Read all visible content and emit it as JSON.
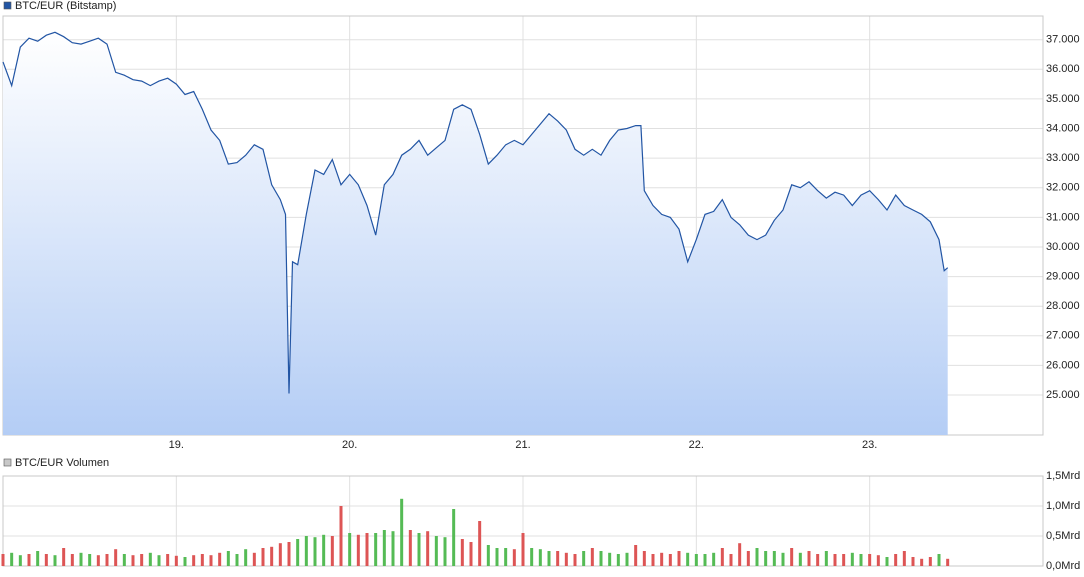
{
  "chart_data": [
    {
      "type": "line",
      "series": [
        {
          "name": "BTC/EUR (Bitstamp)",
          "color": "#2255a4",
          "x": [
            18.0,
            18.05,
            18.1,
            18.15,
            18.2,
            18.25,
            18.3,
            18.35,
            18.4,
            18.45,
            18.5,
            18.55,
            18.6,
            18.65,
            18.7,
            18.75,
            18.8,
            18.85,
            18.9,
            18.95,
            19.0,
            19.05,
            19.1,
            19.15,
            19.2,
            19.25,
            19.3,
            19.35,
            19.4,
            19.45,
            19.5,
            19.55,
            19.6,
            19.63,
            19.65,
            19.67,
            19.7,
            19.75,
            19.8,
            19.85,
            19.9,
            19.95,
            20.0,
            20.05,
            20.1,
            20.15,
            20.2,
            20.25,
            20.3,
            20.35,
            20.4,
            20.45,
            20.5,
            20.55,
            20.6,
            20.65,
            20.7,
            20.75,
            20.8,
            20.85,
            20.9,
            20.95,
            21.0,
            21.05,
            21.1,
            21.15,
            21.2,
            21.25,
            21.3,
            21.35,
            21.4,
            21.45,
            21.5,
            21.55,
            21.6,
            21.65,
            21.68,
            21.7,
            21.75,
            21.8,
            21.85,
            21.9,
            21.95,
            22.0,
            22.05,
            22.1,
            22.15,
            22.2,
            22.25,
            22.3,
            22.35,
            22.4,
            22.45,
            22.5,
            22.55,
            22.6,
            22.65,
            22.7,
            22.75,
            22.8,
            22.85,
            22.9,
            22.95,
            23.0,
            23.05,
            23.1,
            23.15,
            23.2,
            23.25,
            23.3,
            23.35,
            23.4,
            23.43,
            23.45
          ],
          "values": [
            36250,
            35450,
            36750,
            37050,
            36950,
            37150,
            37250,
            37100,
            36900,
            36850,
            36950,
            37050,
            36850,
            35900,
            35800,
            35650,
            35600,
            35450,
            35600,
            35700,
            35500,
            35150,
            35250,
            34650,
            33950,
            33600,
            32800,
            32850,
            33100,
            33450,
            33300,
            32100,
            31600,
            31100,
            25050,
            29500,
            29400,
            31100,
            32600,
            32450,
            32950,
            32100,
            32450,
            32100,
            31400,
            30400,
            32100,
            32450,
            33100,
            33300,
            33600,
            33100,
            33350,
            33600,
            34650,
            34800,
            34650,
            33800,
            32800,
            33100,
            33450,
            33600,
            33450,
            33800,
            34150,
            34500,
            34250,
            33950,
            33300,
            33100,
            33300,
            33100,
            33600,
            33950,
            34000,
            34100,
            34100,
            31900,
            31400,
            31100,
            31000,
            30600,
            29500,
            30250,
            31100,
            31200,
            31600,
            31000,
            30750,
            30400,
            30250,
            30400,
            30900,
            31250,
            32100,
            32000,
            32200,
            31900,
            31650,
            31850,
            31750,
            31400,
            31750,
            31900,
            31600,
            31250,
            31750,
            31400,
            31250,
            31100,
            30850,
            30250,
            29200,
            29300
          ]
        }
      ],
      "xlim": [
        18,
        24
      ],
      "xticks": [
        {
          "value": 19,
          "label": "19."
        },
        {
          "value": 20,
          "label": "20."
        },
        {
          "value": 21,
          "label": "21."
        },
        {
          "value": 22,
          "label": "22."
        },
        {
          "value": 23,
          "label": "23."
        }
      ],
      "ylim": [
        23650,
        37800
      ],
      "yticks": [
        {
          "value": 25000,
          "label": "25.000"
        },
        {
          "value": 26000,
          "label": "26.000"
        },
        {
          "value": 27000,
          "label": "27.000"
        },
        {
          "value": 28000,
          "label": "28.000"
        },
        {
          "value": 29000,
          "label": "29.000"
        },
        {
          "value": 30000,
          "label": "30.000"
        },
        {
          "value": 31000,
          "label": "31.000"
        },
        {
          "value": 32000,
          "label": "32.000"
        },
        {
          "value": 33000,
          "label": "33.000"
        },
        {
          "value": 34000,
          "label": "34.000"
        },
        {
          "value": 35000,
          "label": "35.000"
        },
        {
          "value": 36000,
          "label": "36.000"
        },
        {
          "value": 37000,
          "label": "37.000"
        }
      ],
      "grid": true
    },
    {
      "type": "bar",
      "series": [
        {
          "name": "BTC/EUR Volumen",
          "color": "#c8c8c8",
          "x": [
            18.0,
            18.05,
            18.1,
            18.15,
            18.2,
            18.25,
            18.3,
            18.35,
            18.4,
            18.45,
            18.5,
            18.55,
            18.6,
            18.65,
            18.7,
            18.75,
            18.8,
            18.85,
            18.9,
            18.95,
            19.0,
            19.05,
            19.1,
            19.15,
            19.2,
            19.25,
            19.3,
            19.35,
            19.4,
            19.45,
            19.5,
            19.55,
            19.6,
            19.65,
            19.7,
            19.75,
            19.8,
            19.85,
            19.9,
            19.95,
            20.0,
            20.05,
            20.1,
            20.15,
            20.2,
            20.25,
            20.3,
            20.35,
            20.4,
            20.45,
            20.5,
            20.55,
            20.6,
            20.65,
            20.7,
            20.75,
            20.8,
            20.85,
            20.9,
            20.95,
            21.0,
            21.05,
            21.1,
            21.15,
            21.2,
            21.25,
            21.3,
            21.35,
            21.4,
            21.45,
            21.5,
            21.55,
            21.6,
            21.65,
            21.7,
            21.75,
            21.8,
            21.85,
            21.9,
            21.95,
            22.0,
            22.05,
            22.1,
            22.15,
            22.2,
            22.25,
            22.3,
            22.35,
            22.4,
            22.45,
            22.5,
            22.55,
            22.6,
            22.65,
            22.7,
            22.75,
            22.8,
            22.85,
            22.9,
            22.95,
            23.0,
            23.05,
            23.1,
            23.15,
            23.2,
            23.25,
            23.3,
            23.35,
            23.4,
            23.45
          ],
          "values": [
            0.2,
            0.22,
            0.18,
            0.2,
            0.25,
            0.2,
            0.18,
            0.3,
            0.2,
            0.22,
            0.2,
            0.18,
            0.2,
            0.28,
            0.2,
            0.18,
            0.2,
            0.22,
            0.18,
            0.2,
            0.17,
            0.15,
            0.18,
            0.2,
            0.18,
            0.22,
            0.25,
            0.2,
            0.28,
            0.22,
            0.3,
            0.32,
            0.38,
            0.4,
            0.45,
            0.5,
            0.48,
            0.52,
            0.5,
            1.0,
            0.55,
            0.52,
            0.55,
            0.55,
            0.6,
            0.58,
            1.12,
            0.6,
            0.55,
            0.58,
            0.5,
            0.48,
            0.95,
            0.45,
            0.4,
            0.75,
            0.35,
            0.3,
            0.3,
            0.28,
            0.55,
            0.3,
            0.28,
            0.25,
            0.25,
            0.22,
            0.2,
            0.25,
            0.3,
            0.25,
            0.22,
            0.2,
            0.22,
            0.35,
            0.25,
            0.2,
            0.22,
            0.2,
            0.25,
            0.22,
            0.2,
            0.2,
            0.22,
            0.3,
            0.2,
            0.38,
            0.25,
            0.3,
            0.25,
            0.25,
            0.22,
            0.3,
            0.22,
            0.25,
            0.2,
            0.25,
            0.2,
            0.2,
            0.22,
            0.2,
            0.2,
            0.18,
            0.15,
            0.2,
            0.25,
            0.15,
            0.12,
            0.15,
            0.2,
            0.12
          ],
          "colors": [
            "#d55",
            "#5b5",
            "#5b5",
            "#d55",
            "#5b5",
            "#d55",
            "#5b5",
            "#d55",
            "#d55",
            "#5b5",
            "#5b5",
            "#d55",
            "#d55",
            "#d55",
            "#5b5",
            "#d55",
            "#d55",
            "#5b5",
            "#5b5",
            "#d55",
            "#d55",
            "#5b5",
            "#d55",
            "#d55",
            "#d55",
            "#d55",
            "#5b5",
            "#5b5",
            "#5b5",
            "#d55",
            "#d55",
            "#d55",
            "#d55",
            "#d55",
            "#5b5",
            "#5b5",
            "#5b5",
            "#5b5",
            "#d55",
            "#d55",
            "#5b5",
            "#d55",
            "#d55",
            "#5b5",
            "#5b5",
            "#5b5",
            "#5b5",
            "#d55",
            "#5b5",
            "#d55",
            "#5b5",
            "#5b5",
            "#5b5",
            "#d55",
            "#d55",
            "#d55",
            "#5b5",
            "#5b5",
            "#5b5",
            "#d55",
            "#d55",
            "#5b5",
            "#5b5",
            "#5b5",
            "#d55",
            "#d55",
            "#d55",
            "#5b5",
            "#d55",
            "#5b5",
            "#5b5",
            "#5b5",
            "#5b5",
            "#d55",
            "#d55",
            "#d55",
            "#d55",
            "#d55",
            "#d55",
            "#5b5",
            "#5b5",
            "#5b5",
            "#5b5",
            "#d55",
            "#d55",
            "#d55",
            "#d55",
            "#5b5",
            "#5b5",
            "#5b5",
            "#5b5",
            "#d55",
            "#5b5",
            "#d55",
            "#d55",
            "#5b5",
            "#d55",
            "#d55",
            "#5b5",
            "#5b5",
            "#d55",
            "#d55",
            "#5b5",
            "#d55",
            "#d55",
            "#d55",
            "#d55",
            "#d55",
            "#5b5",
            "#d55"
          ]
        }
      ],
      "xlim": [
        18,
        24
      ],
      "xticks": [
        19,
        20,
        21,
        22,
        23
      ],
      "ylim": [
        0,
        1.5
      ],
      "yticks": [
        {
          "value": 0,
          "label": "0,0Mrd"
        },
        {
          "value": 0.5,
          "label": "0,5Mrd"
        },
        {
          "value": 1,
          "label": "1,0Mrd"
        },
        {
          "value": 1.5,
          "label": "1,5Mrd"
        }
      ],
      "grid": true
    }
  ]
}
